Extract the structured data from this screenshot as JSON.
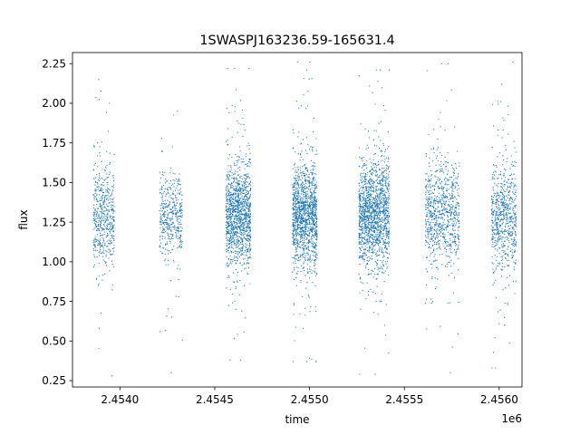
{
  "chart_data": {
    "type": "scatter",
    "title": "1SWASPJ163236.59-165631.4",
    "xlabel": "time",
    "ylabel": "flux",
    "x_offset_label": "1e6",
    "x_multiplier": 1000000,
    "xlim": [
      2.45375,
      2.45612
    ],
    "ylim": [
      0.21,
      2.32
    ],
    "x_ticks": [
      2.454,
      2.4545,
      2.455,
      2.4555,
      2.456
    ],
    "x_tick_labels": [
      "2.4540",
      "2.4545",
      "2.4550",
      "2.4555",
      "2.4560"
    ],
    "y_ticks": [
      0.25,
      0.5,
      0.75,
      1.0,
      1.25,
      1.5,
      1.75,
      2.0,
      2.25
    ],
    "y_tick_labels": [
      "0.25",
      "0.50",
      "0.75",
      "1.00",
      "1.25",
      "1.50",
      "1.75",
      "2.00",
      "2.25"
    ],
    "grid": false,
    "marker_color": "#1f77b4",
    "series": [
      {
        "segments": [
          {
            "x_start": 2453860,
            "x_end": 2453970,
            "y_center": 1.28,
            "y_spread": 0.15,
            "y_min": 0.28,
            "y_max": 2.15,
            "count": 520
          },
          {
            "x_start": 2454210,
            "x_end": 2454330,
            "y_center": 1.29,
            "y_spread": 0.13,
            "y_min": 0.3,
            "y_max": 1.95,
            "count": 440
          },
          {
            "x_start": 2454560,
            "x_end": 2454690,
            "y_center": 1.29,
            "y_spread": 0.15,
            "y_min": 0.38,
            "y_max": 2.22,
            "count": 1250
          },
          {
            "x_start": 2454910,
            "x_end": 2455040,
            "y_center": 1.29,
            "y_spread": 0.15,
            "y_min": 0.37,
            "y_max": 2.26,
            "count": 1350
          },
          {
            "x_start": 2455260,
            "x_end": 2455420,
            "y_center": 1.3,
            "y_spread": 0.16,
            "y_min": 0.29,
            "y_max": 2.21,
            "count": 1550
          },
          {
            "x_start": 2455610,
            "x_end": 2455790,
            "y_center": 1.3,
            "y_spread": 0.16,
            "y_min": 0.3,
            "y_max": 2.25,
            "count": 850
          },
          {
            "x_start": 2455960,
            "x_end": 2456090,
            "y_center": 1.27,
            "y_spread": 0.16,
            "y_min": 0.33,
            "y_max": 2.26,
            "count": 700
          }
        ]
      }
    ]
  }
}
